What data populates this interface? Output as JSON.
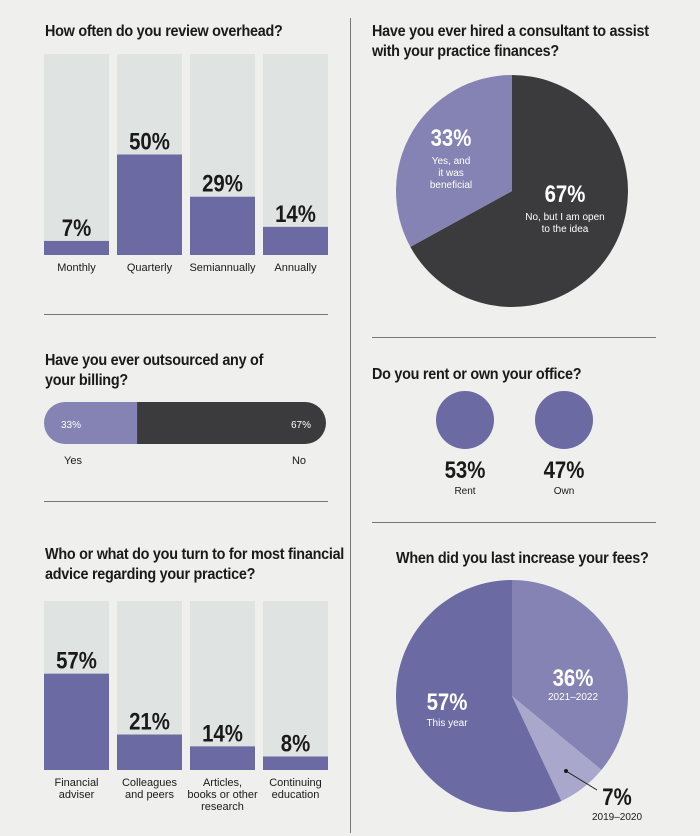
{
  "colors": {
    "background": "#efefee",
    "track": "#dfe3e1",
    "bar": "#6b6aa3",
    "dark": "#3b3b3d",
    "light_purple": "#8583b3",
    "lighter_purple": "#a9a8cc"
  },
  "chart_data": [
    {
      "type": "bar",
      "title": "How often do you review overhead?",
      "categories": [
        "Monthly",
        "Quarterly",
        "Semiannually",
        "Annually"
      ],
      "values": [
        7,
        50,
        29,
        14
      ],
      "labels": [
        "7%",
        "50%",
        "29%",
        "14%"
      ],
      "ylim": [
        0,
        100
      ]
    },
    {
      "type": "pie",
      "title": "Have you ever hired a consultant to assist\nwith your practice finances?",
      "slices": [
        {
          "label": "No, but I am open to the idea",
          "value": 67,
          "pct": "67%"
        },
        {
          "label": "Yes, and it was beneficial",
          "value": 33,
          "pct": "33%"
        }
      ]
    },
    {
      "type": "bar",
      "title": "Have you ever outsourced any of\nyour billing?",
      "orientation": "horizontal-stacked",
      "segments": [
        {
          "label": "Yes",
          "value": 33,
          "pct": "33%"
        },
        {
          "label": "No",
          "value": 67,
          "pct": "67%"
        }
      ]
    },
    {
      "type": "bar",
      "title": "Do you rent or own your office?",
      "categories": [
        "Rent",
        "Own"
      ],
      "values": [
        53,
        47
      ],
      "labels": [
        "53%",
        "47%"
      ]
    },
    {
      "type": "bar",
      "title": "Who or what do you turn to for most financial\nadvice regarding your practice?",
      "categories": [
        "Financial\nadviser",
        "Colleagues\nand peers",
        "Articles,\nbooks or other\nresearch",
        "Continuing\neducation"
      ],
      "values": [
        57,
        21,
        14,
        8
      ],
      "labels": [
        "57%",
        "21%",
        "14%",
        "8%"
      ],
      "ylim": [
        0,
        100
      ]
    },
    {
      "type": "pie",
      "title": "When did you last increase your fees?",
      "slices": [
        {
          "label": "2021–2022",
          "value": 36,
          "pct": "36%"
        },
        {
          "label": "2019–2020",
          "value": 7,
          "pct": "7%"
        },
        {
          "label": "This year",
          "value": 57,
          "pct": "57%"
        }
      ]
    }
  ]
}
